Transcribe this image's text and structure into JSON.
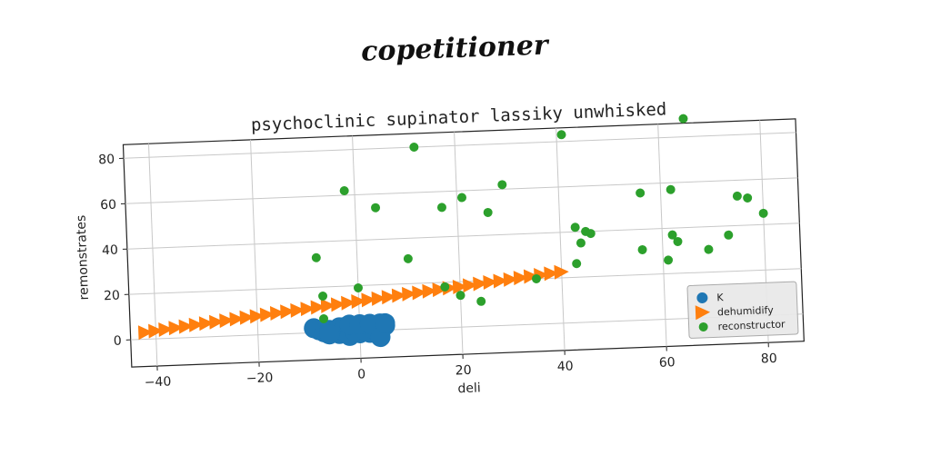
{
  "figure": {
    "suptitle": "copetitioner"
  },
  "chart_data": {
    "type": "scatter",
    "title": "psychoclinic supinator lassiky unwhisked",
    "xlabel": "deli",
    "ylabel": "remonstrates",
    "xlim": [
      -45,
      87
    ],
    "ylim": [
      -12,
      86
    ],
    "xticks": [
      -40,
      -20,
      0,
      20,
      40,
      60,
      80
    ],
    "yticks": [
      0,
      20,
      40,
      60,
      80
    ],
    "grid": true,
    "legend_position": "bottom-right",
    "series": [
      {
        "name": "K",
        "marker": "circle-large",
        "color": "#1f77b4",
        "points": [
          [
            -9,
            2
          ],
          [
            -8,
            1
          ],
          [
            -7,
            0
          ],
          [
            -6,
            1
          ],
          [
            -5,
            0
          ],
          [
            -4,
            2
          ],
          [
            -4,
            -1
          ],
          [
            -3,
            0
          ],
          [
            -3,
            2
          ],
          [
            -2,
            1
          ],
          [
            -2,
            -2
          ],
          [
            -1,
            0
          ],
          [
            -1,
            2
          ],
          [
            0,
            1
          ],
          [
            0,
            -1
          ],
          [
            1,
            2
          ],
          [
            1,
            0
          ],
          [
            2,
            1
          ],
          [
            2,
            -1
          ],
          [
            3,
            2
          ],
          [
            3,
            0
          ],
          [
            4,
            3
          ],
          [
            4,
            1
          ],
          [
            5,
            2
          ],
          [
            -6,
            -1
          ],
          [
            -2,
            3
          ],
          [
            0,
            3
          ],
          [
            2,
            3
          ],
          [
            4,
            -3
          ],
          [
            5,
            3
          ]
        ]
      },
      {
        "name": "dehumidify",
        "marker": "triangle-right",
        "color": "#ff7f0e",
        "points": [
          [
            -42,
            3
          ],
          [
            -40,
            3.5
          ],
          [
            -38,
            4
          ],
          [
            -36,
            4.5
          ],
          [
            -34,
            5
          ],
          [
            -32,
            5.5
          ],
          [
            -30,
            6
          ],
          [
            -28,
            6.4
          ],
          [
            -26,
            6.9
          ],
          [
            -24,
            7.4
          ],
          [
            -22,
            7.9
          ],
          [
            -20,
            8.3
          ],
          [
            -18,
            8.8
          ],
          [
            -16,
            9.3
          ],
          [
            -14,
            9.8
          ],
          [
            -12,
            10.2
          ],
          [
            -10,
            10.7
          ],
          [
            -8,
            11.2
          ],
          [
            -6,
            11.7
          ],
          [
            -4,
            12.1
          ],
          [
            -2,
            12.6
          ],
          [
            0,
            13.1
          ],
          [
            2,
            13.6
          ],
          [
            4,
            14
          ],
          [
            6,
            14.5
          ],
          [
            8,
            15
          ],
          [
            10,
            15.5
          ],
          [
            12,
            15.9
          ],
          [
            14,
            16.4
          ],
          [
            16,
            16.9
          ],
          [
            18,
            17.4
          ],
          [
            20,
            17.8
          ],
          [
            22,
            18.3
          ],
          [
            24,
            18.8
          ],
          [
            26,
            19.3
          ],
          [
            28,
            19.7
          ],
          [
            30,
            20.2
          ],
          [
            32,
            20.7
          ],
          [
            34,
            21.2
          ],
          [
            36,
            21.6
          ],
          [
            38,
            22.1
          ],
          [
            40,
            22.6
          ]
        ]
      },
      {
        "name": "reconstructor",
        "marker": "circle-small",
        "color": "#2ca02c",
        "points": [
          [
            12,
            80
          ],
          [
            41,
            83
          ],
          [
            65,
            88
          ],
          [
            -2,
            62
          ],
          [
            4,
            54
          ],
          [
            17,
            53
          ],
          [
            21,
            57
          ],
          [
            26,
            50
          ],
          [
            29,
            62
          ],
          [
            56,
            56
          ],
          [
            62,
            57
          ],
          [
            75,
            53
          ],
          [
            77,
            52
          ],
          [
            80,
            45
          ],
          [
            -8,
            33
          ],
          [
            10,
            31
          ],
          [
            43,
            42
          ],
          [
            45,
            40
          ],
          [
            46,
            39
          ],
          [
            62,
            37
          ],
          [
            63,
            34
          ],
          [
            73,
            36
          ],
          [
            56,
            31
          ],
          [
            69,
            30
          ],
          [
            44,
            35
          ],
          [
            43,
            26
          ],
          [
            61,
            26
          ],
          [
            -7,
            16
          ],
          [
            0,
            19
          ],
          [
            17,
            18
          ],
          [
            20,
            14
          ],
          [
            24,
            11
          ],
          [
            35,
            20
          ],
          [
            -7,
            6
          ]
        ]
      }
    ]
  }
}
